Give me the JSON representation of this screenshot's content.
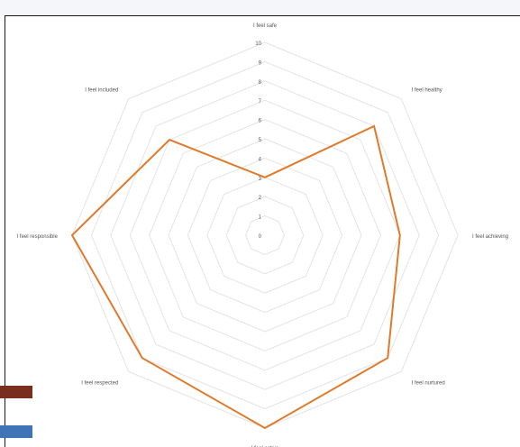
{
  "chart_data": {
    "type": "radar",
    "categories": [
      "I feel safe",
      "I feel healthy",
      "I feel achieving",
      "I feel nurtured",
      "I feel active",
      "I feel respected",
      "I feel responsible",
      "I feel included"
    ],
    "values": [
      3,
      8,
      7,
      9,
      10,
      9,
      10,
      7
    ],
    "rlim": [
      0,
      10
    ],
    "ticks": [
      "0",
      "1",
      "2",
      "3",
      "4",
      "5",
      "6",
      "7",
      "8",
      "9",
      "10"
    ],
    "grid": true,
    "line_color": "#e07a2b",
    "grid_color": "#e3e3e3"
  }
}
